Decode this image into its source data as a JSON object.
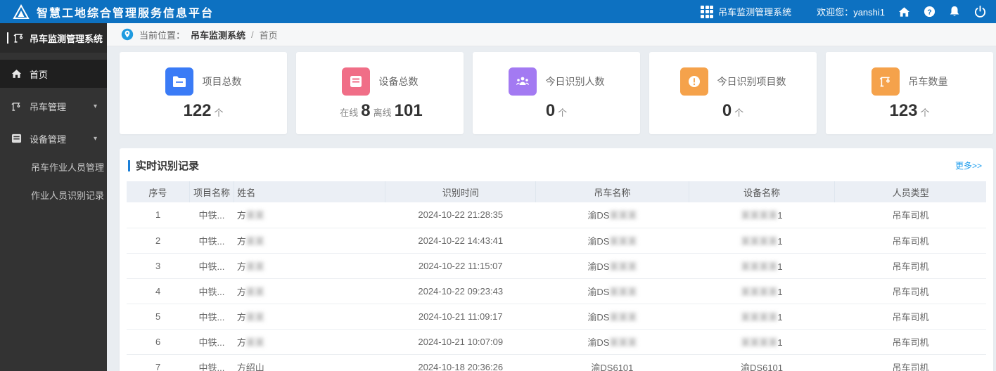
{
  "topbar": {
    "title": "智慧工地综合管理服务信息平台",
    "system_label": "吊车监测管理系统",
    "welcome_prefix": "欢迎您：",
    "username": "yanshi1"
  },
  "sidebar": {
    "header": "吊车监测管理系统",
    "items": [
      {
        "label": "首页"
      },
      {
        "label": "吊车管理",
        "caret": "▾"
      },
      {
        "label": "设备管理",
        "caret": "▾"
      },
      {
        "label": "吊车作业人员管理"
      },
      {
        "label": "作业人员识别记录"
      }
    ]
  },
  "breadcrumb": {
    "prefix": "当前位置：",
    "section": "吊车监测系统",
    "separator": "/",
    "current": "首页"
  },
  "stats_cards": [
    {
      "label": "项目总数",
      "icon": "folder-icon",
      "color": "#3a7bf6",
      "value": "122",
      "unit": "个"
    },
    {
      "label": "设备总数",
      "icon": "server-icon",
      "color": "#f06e87",
      "online_label": "在线",
      "online_value": "8",
      "offline_label": "离线",
      "offline_value": "101"
    },
    {
      "label": "今日识别人数",
      "icon": "people-icon",
      "color": "#a37af2",
      "value": "0",
      "unit": "个"
    },
    {
      "label": "今日识别项目数",
      "icon": "info-icon",
      "color": "#f5a24b",
      "value": "0",
      "unit": "个"
    },
    {
      "label": "吊车数量",
      "icon": "crane-icon",
      "color": "#f5a24b",
      "value": "123",
      "unit": "个"
    }
  ],
  "panel": {
    "title": "实时识别记录",
    "more_link": "更多>>",
    "table": {
      "headers": [
        "序号",
        "项目名称",
        "姓名",
        "识别时间",
        "吊车名称",
        "设备名称",
        "人员类型"
      ],
      "rows": [
        {
          "no": "1",
          "project": "中铁...",
          "name": "方",
          "name_blur": "某某",
          "time": "2024-10-22 21:28:35",
          "crane": "渝DS",
          "crane_blur": "某某某",
          "device_blur": "某某某某",
          "device": "1",
          "type": "吊车司机"
        },
        {
          "no": "2",
          "project": "中铁...",
          "name": "方",
          "name_blur": "某某",
          "time": "2024-10-22 14:43:41",
          "crane": "渝DS",
          "crane_blur": "某某某",
          "device_blur": "某某某某",
          "device": "1",
          "type": "吊车司机"
        },
        {
          "no": "3",
          "project": "中铁...",
          "name": "方",
          "name_blur": "某某",
          "time": "2024-10-22 11:15:07",
          "crane": "渝DS",
          "crane_blur": "某某某",
          "device_blur": "某某某某",
          "device": "1",
          "type": "吊车司机"
        },
        {
          "no": "4",
          "project": "中铁...",
          "name": "方",
          "name_blur": "某某",
          "time": "2024-10-22 09:23:43",
          "crane": "渝DS",
          "crane_blur": "某某某",
          "device_blur": "某某某某",
          "device": "1",
          "type": "吊车司机"
        },
        {
          "no": "5",
          "project": "中铁...",
          "name": "方",
          "name_blur": "某某",
          "time": "2024-10-21 11:09:17",
          "crane": "渝DS",
          "crane_blur": "某某某",
          "device_blur": "某某某某",
          "device": "1",
          "type": "吊车司机"
        },
        {
          "no": "6",
          "project": "中铁...",
          "name": "方",
          "name_blur": "某某",
          "time": "2024-10-21 10:07:09",
          "crane": "渝DS",
          "crane_blur": "某某某",
          "device_blur": "某某某某",
          "device": "1",
          "type": "吊车司机"
        },
        {
          "no": "7",
          "project": "中铁...",
          "name": "方绍山",
          "name_blur": "",
          "time": "2024-10-18 20:36:26",
          "crane": "渝DS6101",
          "crane_blur": "",
          "device_blur": "",
          "device": "渝DS6101",
          "type": "吊车司机"
        }
      ]
    }
  }
}
